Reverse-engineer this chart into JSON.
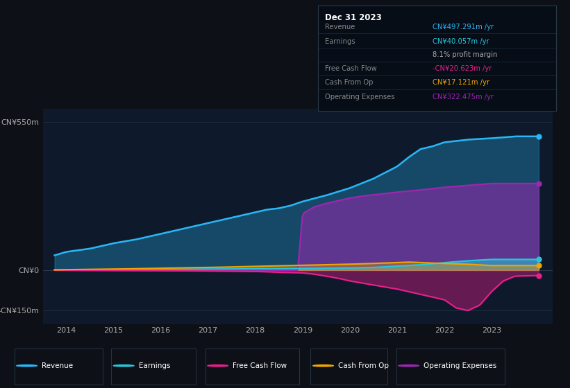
{
  "background_color": "#0d1117",
  "chart_bg": "#0e1a2b",
  "colors": {
    "revenue": "#29b6f6",
    "earnings": "#26c6da",
    "free_cash_flow": "#e91e8c",
    "cash_from_op": "#f0a500",
    "operating_expenses": "#9c27b0"
  },
  "info_box": {
    "title": "Dec 31 2023",
    "rows": [
      {
        "label": "Revenue",
        "value": "CN¥497.291m /yr",
        "color": "#29b6f6"
      },
      {
        "label": "Earnings",
        "value": "CN¥40.057m /yr",
        "color": "#26c6da"
      },
      {
        "label": "",
        "value": "8.1% profit margin",
        "color": "#aaaaaa"
      },
      {
        "label": "Free Cash Flow",
        "value": "-CN¥20.623m /yr",
        "color": "#e91e8c"
      },
      {
        "label": "Cash From Op",
        "value": "CN¥17.121m /yr",
        "color": "#f0a500"
      },
      {
        "label": "Operating Expenses",
        "value": "CN¥322.475m /yr",
        "color": "#9c27b0"
      }
    ]
  },
  "legend_items": [
    {
      "label": "Revenue",
      "color": "#29b6f6"
    },
    {
      "label": "Earnings",
      "color": "#26c6da"
    },
    {
      "label": "Free Cash Flow",
      "color": "#e91e8c"
    },
    {
      "label": "Cash From Op",
      "color": "#f0a500"
    },
    {
      "label": "Operating Expenses",
      "color": "#9c27b0"
    }
  ],
  "rev_x": [
    2013.75,
    2014.0,
    2014.5,
    2015.0,
    2015.5,
    2016.0,
    2016.5,
    2017.0,
    2017.5,
    2018.0,
    2018.25,
    2018.5,
    2018.75,
    2019.0,
    2019.5,
    2020.0,
    2020.5,
    2021.0,
    2021.25,
    2021.5,
    2021.75,
    2022.0,
    2022.5,
    2023.0,
    2023.5,
    2024.0
  ],
  "rev_y": [
    55,
    68,
    80,
    100,
    115,
    135,
    155,
    175,
    195,
    215,
    225,
    230,
    240,
    255,
    278,
    305,
    340,
    385,
    420,
    450,
    460,
    475,
    485,
    490,
    497,
    497
  ],
  "earn_x": [
    2013.75,
    2014,
    2015,
    2016,
    2017,
    2018,
    2018.5,
    2019,
    2019.5,
    2020,
    2020.5,
    2021,
    2021.5,
    2022,
    2022.5,
    2023,
    2024.0
  ],
  "earn_y": [
    1,
    1.5,
    2,
    3,
    4,
    5,
    5.5,
    6,
    7,
    8,
    10,
    15,
    20,
    28,
    35,
    40,
    40
  ],
  "fcf_x": [
    2013.75,
    2015,
    2016,
    2017,
    2018,
    2018.25,
    2018.5,
    2019.0,
    2019.25,
    2019.5,
    2019.75,
    2020.0,
    2020.5,
    2021.0,
    2021.5,
    2022.0,
    2022.25,
    2022.5,
    2022.75,
    2023.0,
    2023.25,
    2023.5,
    2024.0
  ],
  "fcf_y": [
    0,
    -1,
    -2,
    -3,
    -5,
    -6,
    -8,
    -10,
    -15,
    -22,
    -30,
    -40,
    -55,
    -70,
    -90,
    -110,
    -140,
    -150,
    -130,
    -80,
    -40,
    -22,
    -20
  ],
  "cfop_x": [
    2013.75,
    2014,
    2015,
    2016,
    2017,
    2018,
    2018.5,
    2019.0,
    2019.5,
    2020.0,
    2020.5,
    2021.0,
    2021.25,
    2021.5,
    2022.0,
    2022.5,
    2023.0,
    2024.0
  ],
  "cfop_y": [
    1,
    2,
    4,
    7,
    10,
    14,
    16,
    18,
    20,
    22,
    25,
    28,
    30,
    28,
    25,
    22,
    17,
    17
  ],
  "opex_x": [
    2013.75,
    2018.75,
    2018.9,
    2019.0,
    2019.25,
    2019.5,
    2019.75,
    2020.0,
    2020.25,
    2020.5,
    2021.0,
    2021.5,
    2022.0,
    2022.5,
    2023.0,
    2024.0
  ],
  "opex_y": [
    0,
    0,
    0,
    210,
    235,
    248,
    258,
    268,
    275,
    280,
    290,
    298,
    308,
    315,
    322,
    322
  ]
}
